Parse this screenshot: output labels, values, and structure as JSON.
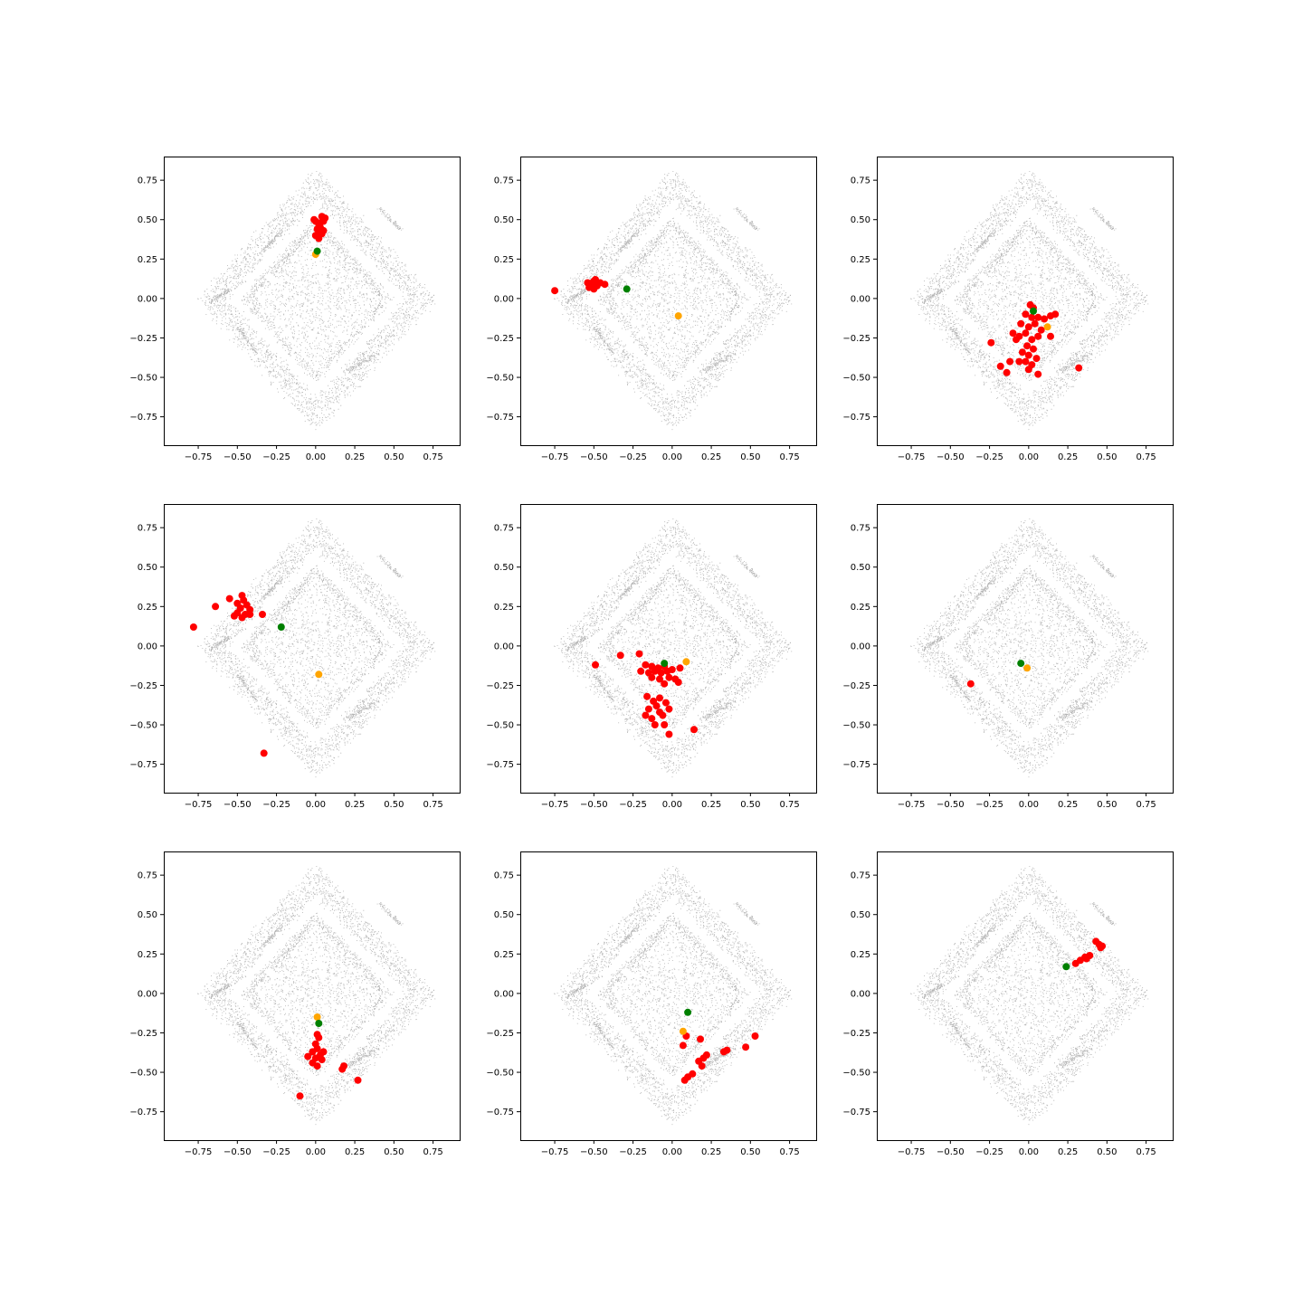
{
  "figure": {
    "rows": 3,
    "cols": 3
  },
  "colors": {
    "background": "#c8c8c8",
    "cluster": "#ff0000",
    "green": "#008000",
    "orange": "#ffa500",
    "axes": "#000000"
  },
  "background_shape": {
    "description_for_render": "gray diamond-shaped point cloud, identical in every panel",
    "ring_vertices": [
      [
        0.0,
        0.78
      ],
      [
        0.73,
        0.0
      ],
      [
        0.0,
        -0.8
      ],
      [
        -0.72,
        0.0
      ]
    ],
    "ring_inner_scale": 0.62,
    "streaks": [
      [
        [
          -0.35,
          0.29
        ],
        [
          -0.22,
          0.43
        ]
      ],
      [
        [
          -0.5,
          -0.18
        ],
        [
          -0.38,
          -0.34
        ]
      ],
      [
        [
          0.2,
          -0.46
        ],
        [
          0.38,
          -0.35
        ]
      ],
      [
        [
          -0.68,
          -0.02
        ],
        [
          -0.55,
          0.06
        ]
      ],
      [
        [
          0.4,
          0.58
        ],
        [
          0.55,
          0.43
        ]
      ]
    ]
  },
  "chart_data": [
    {
      "type": "scatter",
      "xlim": [
        -0.97,
        0.92
      ],
      "ylim": [
        -0.93,
        0.9
      ],
      "xticks": [
        "−0.75",
        "−0.50",
        "−0.25",
        "0.00",
        "0.25",
        "0.50",
        "0.75"
      ],
      "yticks": [
        "0.75",
        "0.50",
        "0.25",
        "0.00",
        "−0.25",
        "−0.50",
        "−0.75"
      ],
      "red": [
        [
          -0.01,
          0.5
        ],
        [
          0.0,
          0.49
        ],
        [
          0.02,
          0.47
        ],
        [
          0.04,
          0.52
        ],
        [
          0.06,
          0.51
        ],
        [
          0.05,
          0.49
        ],
        [
          0.03,
          0.45
        ],
        [
          0.01,
          0.44
        ],
        [
          0.02,
          0.42
        ],
        [
          0.04,
          0.41
        ],
        [
          0.0,
          0.4
        ],
        [
          0.02,
          0.38
        ],
        [
          0.05,
          0.43
        ],
        [
          0.03,
          0.48
        ]
      ],
      "green": [
        [
          0.01,
          0.3
        ]
      ],
      "orange": [
        [
          0.0,
          0.28
        ]
      ]
    },
    {
      "type": "scatter",
      "xlim": [
        -0.97,
        0.92
      ],
      "ylim": [
        -0.93,
        0.9
      ],
      "xticks": [
        "−0.75",
        "−0.50",
        "−0.25",
        "0.00",
        "0.25",
        "0.50",
        "0.75"
      ],
      "yticks": [
        "0.75",
        "0.50",
        "0.25",
        "0.00",
        "−0.25",
        "−0.50",
        "−0.75"
      ],
      "red": [
        [
          -0.75,
          0.05
        ],
        [
          -0.53,
          0.07
        ],
        [
          -0.51,
          0.1
        ],
        [
          -0.49,
          0.12
        ],
        [
          -0.52,
          0.09
        ],
        [
          -0.5,
          0.06
        ],
        [
          -0.48,
          0.08
        ],
        [
          -0.46,
          0.1
        ],
        [
          -0.5,
          0.11
        ],
        [
          -0.54,
          0.1
        ],
        [
          -0.43,
          0.09
        ]
      ],
      "green": [
        [
          -0.29,
          0.06
        ]
      ],
      "orange": [
        [
          0.04,
          -0.11
        ]
      ]
    },
    {
      "type": "scatter",
      "xlim": [
        -0.97,
        0.92
      ],
      "ylim": [
        -0.93,
        0.9
      ],
      "xticks": [
        "−0.75",
        "−0.50",
        "−0.25",
        "0.00",
        "0.25",
        "0.50",
        "0.75"
      ],
      "yticks": [
        "0.75",
        "0.50",
        "0.25",
        "0.00",
        "−0.25",
        "−0.50",
        "−0.75"
      ],
      "red": [
        [
          0.01,
          -0.04
        ],
        [
          0.03,
          -0.06
        ],
        [
          -0.02,
          -0.1
        ],
        [
          0.02,
          -0.12
        ],
        [
          0.06,
          -0.12
        ],
        [
          0.1,
          -0.13
        ],
        [
          0.14,
          -0.11
        ],
        [
          0.17,
          -0.1
        ],
        [
          -0.05,
          -0.16
        ],
        [
          0.0,
          -0.18
        ],
        [
          0.04,
          -0.16
        ],
        [
          0.08,
          -0.2
        ],
        [
          -0.1,
          -0.22
        ],
        [
          -0.06,
          -0.24
        ],
        [
          -0.02,
          -0.22
        ],
        [
          0.02,
          -0.26
        ],
        [
          0.06,
          -0.24
        ],
        [
          0.14,
          -0.24
        ],
        [
          -0.08,
          -0.26
        ],
        [
          -0.24,
          -0.28
        ],
        [
          -0.01,
          -0.3
        ],
        [
          0.03,
          -0.32
        ],
        [
          -0.04,
          -0.34
        ],
        [
          0.0,
          -0.36
        ],
        [
          0.05,
          -0.38
        ],
        [
          -0.12,
          -0.4
        ],
        [
          -0.06,
          -0.4
        ],
        [
          -0.02,
          -0.4
        ],
        [
          0.02,
          -0.42
        ],
        [
          -0.18,
          -0.43
        ],
        [
          -0.14,
          -0.47
        ],
        [
          0.0,
          -0.45
        ],
        [
          0.06,
          -0.48
        ],
        [
          0.32,
          -0.44
        ]
      ],
      "green": [
        [
          0.03,
          -0.08
        ]
      ],
      "orange": [
        [
          0.12,
          -0.18
        ]
      ]
    },
    {
      "type": "scatter",
      "xlim": [
        -0.97,
        0.92
      ],
      "ylim": [
        -0.93,
        0.9
      ],
      "xticks": [
        "−0.75",
        "−0.50",
        "−0.25",
        "0.00",
        "0.25",
        "0.50",
        "0.75"
      ],
      "yticks": [
        "0.75",
        "0.50",
        "0.25",
        "0.00",
        "−0.25",
        "−0.50",
        "−0.75"
      ],
      "red": [
        [
          -0.47,
          0.32
        ],
        [
          -0.46,
          0.29
        ],
        [
          -0.5,
          0.27
        ],
        [
          -0.44,
          0.26
        ],
        [
          -0.55,
          0.3
        ],
        [
          -0.64,
          0.25
        ],
        [
          -0.48,
          0.24
        ],
        [
          -0.42,
          0.23
        ],
        [
          -0.5,
          0.21
        ],
        [
          -0.45,
          0.2
        ],
        [
          -0.52,
          0.19
        ],
        [
          -0.47,
          0.18
        ],
        [
          -0.42,
          0.2
        ],
        [
          -0.34,
          0.2
        ],
        [
          -0.78,
          0.12
        ],
        [
          -0.33,
          -0.68
        ]
      ],
      "green": [
        [
          -0.22,
          0.12
        ]
      ],
      "orange": [
        [
          0.02,
          -0.18
        ]
      ]
    },
    {
      "type": "scatter",
      "xlim": [
        -0.97,
        0.92
      ],
      "ylim": [
        -0.93,
        0.9
      ],
      "xticks": [
        "−0.75",
        "−0.50",
        "−0.25",
        "0.00",
        "0.25",
        "0.50",
        "0.75"
      ],
      "yticks": [
        "0.75",
        "0.50",
        "0.25",
        "0.00",
        "−0.25",
        "−0.50",
        "−0.75"
      ],
      "red": [
        [
          -0.21,
          -0.05
        ],
        [
          -0.33,
          -0.06
        ],
        [
          -0.49,
          -0.12
        ],
        [
          -0.17,
          -0.12
        ],
        [
          -0.13,
          -0.13
        ],
        [
          -0.09,
          -0.14
        ],
        [
          -0.05,
          -0.13
        ],
        [
          0.0,
          -0.15
        ],
        [
          -0.2,
          -0.16
        ],
        [
          -0.15,
          -0.17
        ],
        [
          -0.11,
          -0.16
        ],
        [
          -0.07,
          -0.17
        ],
        [
          -0.03,
          -0.16
        ],
        [
          0.05,
          -0.14
        ],
        [
          -0.13,
          -0.2
        ],
        [
          -0.08,
          -0.21
        ],
        [
          -0.02,
          -0.2
        ],
        [
          0.02,
          -0.21
        ],
        [
          0.04,
          -0.23
        ],
        [
          -0.05,
          -0.24
        ],
        [
          -0.16,
          -0.32
        ],
        [
          -0.12,
          -0.35
        ],
        [
          -0.08,
          -0.33
        ],
        [
          -0.04,
          -0.36
        ],
        [
          -0.15,
          -0.4
        ],
        [
          -0.1,
          -0.38
        ],
        [
          -0.02,
          -0.4
        ],
        [
          -0.08,
          -0.42
        ],
        [
          -0.17,
          -0.44
        ],
        [
          -0.13,
          -0.46
        ],
        [
          -0.06,
          -0.44
        ],
        [
          -0.11,
          -0.5
        ],
        [
          -0.05,
          -0.5
        ],
        [
          -0.02,
          -0.56
        ],
        [
          0.14,
          -0.53
        ]
      ],
      "green": [
        [
          -0.05,
          -0.11
        ]
      ],
      "orange": [
        [
          0.09,
          -0.1
        ]
      ]
    },
    {
      "type": "scatter",
      "xlim": [
        -0.97,
        0.92
      ],
      "ylim": [
        -0.93,
        0.9
      ],
      "xticks": [
        "−0.75",
        "−0.50",
        "−0.25",
        "0.00",
        "0.25",
        "0.50",
        "0.75"
      ],
      "yticks": [
        "0.75",
        "0.50",
        "0.25",
        "0.00",
        "−0.25",
        "−0.50",
        "−0.75"
      ],
      "red": [
        [
          -0.37,
          -0.24
        ]
      ],
      "green": [
        [
          -0.05,
          -0.11
        ]
      ],
      "orange": [
        [
          -0.01,
          -0.14
        ]
      ]
    },
    {
      "type": "scatter",
      "xlim": [
        -0.97,
        0.92
      ],
      "ylim": [
        -0.93,
        0.9
      ],
      "xticks": [
        "−0.75",
        "−0.50",
        "−0.25",
        "0.00",
        "0.25",
        "0.50",
        "0.75"
      ],
      "yticks": [
        "0.75",
        "0.50",
        "0.25",
        "0.00",
        "−0.25",
        "−0.50",
        "−0.75"
      ],
      "red": [
        [
          0.01,
          -0.26
        ],
        [
          0.02,
          -0.28
        ],
        [
          0.0,
          -0.32
        ],
        [
          0.01,
          -0.35
        ],
        [
          0.05,
          -0.37
        ],
        [
          -0.02,
          -0.37
        ],
        [
          -0.05,
          -0.4
        ],
        [
          0.0,
          -0.41
        ],
        [
          0.04,
          -0.42
        ],
        [
          -0.02,
          -0.44
        ],
        [
          0.01,
          -0.46
        ],
        [
          0.03,
          -0.39
        ],
        [
          0.18,
          -0.46
        ],
        [
          0.17,
          -0.48
        ],
        [
          0.27,
          -0.55
        ],
        [
          -0.1,
          -0.65
        ]
      ],
      "green": [
        [
          0.02,
          -0.19
        ]
      ],
      "orange": [
        [
          0.01,
          -0.15
        ]
      ]
    },
    {
      "type": "scatter",
      "xlim": [
        -0.97,
        0.92
      ],
      "ylim": [
        -0.93,
        0.9
      ],
      "xticks": [
        "−0.75",
        "−0.50",
        "−0.25",
        "0.00",
        "0.25",
        "0.50",
        "0.75"
      ],
      "yticks": [
        "0.75",
        "0.50",
        "0.25",
        "0.00",
        "−0.25",
        "−0.50",
        "−0.75"
      ],
      "red": [
        [
          0.09,
          -0.27
        ],
        [
          0.18,
          -0.29
        ],
        [
          0.07,
          -0.33
        ],
        [
          0.22,
          -0.39
        ],
        [
          0.2,
          -0.41
        ],
        [
          0.17,
          -0.43
        ],
        [
          0.19,
          -0.46
        ],
        [
          0.13,
          -0.51
        ],
        [
          0.1,
          -0.53
        ],
        [
          0.08,
          -0.55
        ],
        [
          0.35,
          -0.36
        ],
        [
          0.33,
          -0.37
        ],
        [
          0.47,
          -0.34
        ],
        [
          0.53,
          -0.27
        ]
      ],
      "green": [
        [
          0.1,
          -0.12
        ]
      ],
      "orange": [
        [
          0.07,
          -0.24
        ]
      ]
    },
    {
      "type": "scatter",
      "xlim": [
        -0.97,
        0.92
      ],
      "ylim": [
        -0.93,
        0.9
      ],
      "xticks": [
        "−0.75",
        "−0.50",
        "−0.25",
        "0.00",
        "0.25",
        "0.50",
        "0.75"
      ],
      "yticks": [
        "0.75",
        "0.50",
        "0.25",
        "0.00",
        "−0.25",
        "−0.50",
        "−0.75"
      ],
      "red": [
        [
          0.3,
          0.19
        ],
        [
          0.33,
          0.21
        ],
        [
          0.36,
          0.23
        ],
        [
          0.37,
          0.22
        ],
        [
          0.39,
          0.24
        ],
        [
          0.43,
          0.33
        ],
        [
          0.45,
          0.31
        ],
        [
          0.47,
          0.3
        ],
        [
          0.46,
          0.29
        ]
      ],
      "green": [
        [
          0.24,
          0.17
        ]
      ],
      "orange": []
    }
  ]
}
